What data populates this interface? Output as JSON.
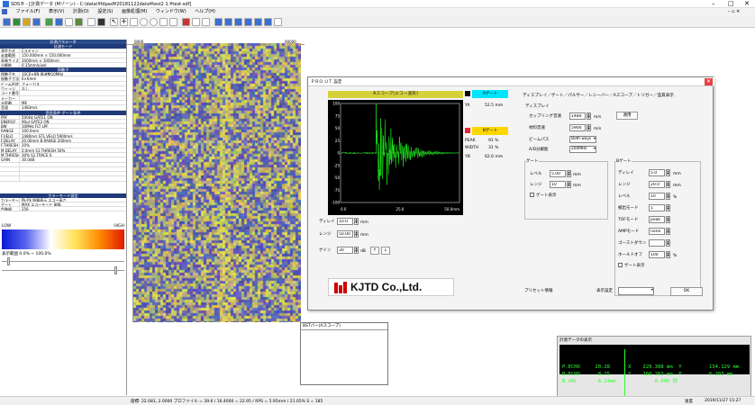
{
  "window": {
    "title": "SDS® - [計測データ (Mゾーン) - C:\\data\\¥fdpad¥20181122data¥test2 1.¥test-sdf]",
    "min": "–",
    "max": "□",
    "close": "✕",
    "inner_close": "– ▫ ✕"
  },
  "menu": [
    "ファイル(F)",
    "表示(V)",
    "計測(O)",
    "設定(S)",
    "画像処理(M)",
    "ウィンドウ(W)",
    "ヘルプ(H)"
  ],
  "ruler": {
    "left": "0000",
    "right": "00000"
  },
  "left_panel": {
    "header": "計測パラメータ",
    "section1": "計測モード",
    "rows1": [
      {
        "k": "測定方式",
        "v": "Cスキャン"
      },
      {
        "k": "走査範囲",
        "v": "150.000mm × 150.000mm"
      },
      {
        "k": "画像サイズ",
        "v": "1000mm × 1000mm"
      },
      {
        "k": "分解能",
        "v": "0.15mm/pixel"
      }
    ],
    "section2": "探触子",
    "rows2": [
      {
        "k": "探触子名",
        "v": "10C6×6N    周波数10MHz"
      },
      {
        "k": "振動子寸法",
        "v": "6×6mm"
      },
      {
        "k": "ビーム形状",
        "v": "フォーカス"
      },
      {
        "k": "ウェッジ",
        "v": "なし"
      },
      {
        "k": "コード番号",
        "v": ""
      },
      {
        "k": "メーカー",
        "v": ""
      },
      {
        "k": "水距離",
        "v": "ME"
      },
      {
        "k": "音速",
        "v": "1483m/s"
      }
    ],
    "section3": "受信条件   ゲート条件",
    "rows3": [
      {
        "k": "PRF",
        "v": "500Hz      GATE1   ON"
      },
      {
        "k": "ENERGY",
        "v": "90μJ       GATE2   ON"
      },
      {
        "k": "BW",
        "v": "10MHz      FLT      LPF"
      },
      {
        "k": "RANGE",
        "v": "100.0mm"
      },
      {
        "k": "F.VELO",
        "v": "1480m/s    STL.VELO  5900m/s"
      },
      {
        "k": "F.DELAY",
        "v": "20.00mm    B.RANGE  200mm"
      },
      {
        "k": "F.THRESH",
        "v": "20%"
      },
      {
        "k": "M.DELAY",
        "v": "0.0mm       S1.THRESH  50%"
      },
      {
        "k": "M.THRESH",
        "v": "30%        S1.TRACE  S"
      },
      {
        "k": "GAIN",
        "v": "30.0dB"
      }
    ],
    "section4": "カラーモード設定",
    "rows4": [
      {
        "k": "カラーモード",
        "v": "Pk-Pk    振幅表示  エコー高さ"
      },
      {
        "k": "ゲート",
        "v": "MAX      エコーモード  振幅"
      },
      {
        "k": "色階調",
        "v": "256"
      }
    ],
    "colorbar_low": "LOW",
    "colorbar_high": "HIGH",
    "range_label": "表示範囲 0.0% ~ 100.0%"
  },
  "dialog": {
    "title": "ＰＲＯ ＵＴ 設定",
    "ascope_title": "Aスコープ(エコー波形)",
    "gate_btn1": "Aゲート",
    "gate_btn2": "Bゲート",
    "ya_label": "YA",
    "ya_value": "52.5 mm",
    "yb_label": "YB",
    "yb_value": "62.6 mm",
    "amp_rows": [
      {
        "k": "PEAK",
        "v": "91 %"
      },
      {
        "k": "WIDTH",
        "v": "31 %"
      }
    ],
    "y_ticks": [
      "-100",
      "-75",
      "-50",
      "-25",
      "0",
      "25",
      "50",
      "75",
      "100"
    ],
    "x_ticks": [
      "0.0",
      "25.0",
      "50.0mm"
    ],
    "delay_label": "ディレイ",
    "delay_value": "10.0",
    "delay_unit": "mm",
    "range_label": "レンジ",
    "range_value": "50.00",
    "range_unit": "mm",
    "gain_label": "ゲイン",
    "gain_value": "30",
    "gain_unit": "dB",
    "gain_btn1": "↑",
    "gain_btn2": "↓",
    "tabs": "ディスプレイ／ゲート／パルサー／レシーバー／Aスコープ／トリガー／品質表示",
    "display_group": "ディスプレイ",
    "velo_label": "カップリング音速",
    "velo_value": "1480",
    "velo_unit": "m/s",
    "velo2_label": "材料音速",
    "velo2_value": "5900",
    "velo2_unit": "m/s",
    "set_btn": "適用",
    "beam_label": "ビームパス",
    "beam_value": "Both ways",
    "ascan_label": "A/D分解能",
    "ascan_value": "200MHz",
    "gate_group": "ゲート",
    "gate_level_label": "レベル",
    "gate_level_value": "5.00",
    "gate_level_unit": "mm",
    "gate_range_label": "レンジ",
    "gate_range_value": "10",
    "gate_range_unit": "mm",
    "gate_check": "ゲート表示",
    "bgate_group": "Bゲート",
    "bgate_rows": [
      {
        "k": "ディレイ",
        "v": "5.0",
        "u": "mm"
      },
      {
        "k": "レンジ",
        "v": "20.0",
        "u": "mm"
      },
      {
        "k": "レベル",
        "v": "10",
        "u": "%"
      },
      {
        "k": "検出モード",
        "v": "1"
      },
      {
        "k": "TOFモード",
        "v": "peak"
      },
      {
        "k": "AMPモード",
        "v": "none"
      },
      {
        "k": "ゴーストダウン",
        "v": ""
      },
      {
        "k": "ホールドオフ",
        "v": "100",
        "u": "%"
      }
    ],
    "bgate_check": "ゲート表示",
    "company": "KJTD Co.,Ltd.",
    "preset_label": "プリセット情報",
    "display_mode_label": "表示設定",
    "ok_btn": "OK"
  },
  "small_window": {
    "title": "BSTバー(Aスコープ)"
  },
  "meas": {
    "title": "計測データの表示",
    "left_lines": [
      "P.ECHO     20.28",
      "B.ECHO      8.25",
      "B.VAL       6.24mm"
    ],
    "mid_lines": [
      "X    229.308 mm  Y",
      "Y    160.263 mm  P",
      "         8.000 秒"
    ],
    "right_lines": [
      "134.129 mm",
      "6.203 mm",
      ""
    ]
  },
  "status": {
    "text": "座標: 22.081, 2.0000    プロファイル = 39.6 / 16.4000 = 22.95 / RPS = 5.95mm / 21.05% S = 185",
    "right1": "速度",
    "right2": "2019/11/27  15:27"
  }
}
